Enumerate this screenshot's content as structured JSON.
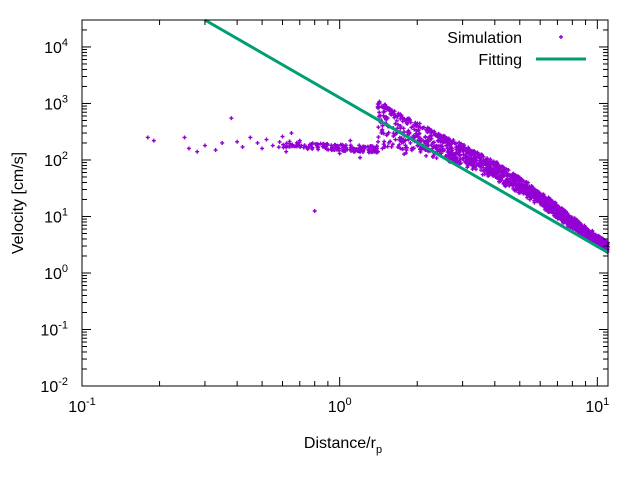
{
  "chart_data": {
    "type": "scatter",
    "title": "",
    "xlabel": "Distance/r",
    "xlabel_sub": "p",
    "ylabel": "Velocity [cm/s]",
    "x_scale": "log",
    "y_scale": "log",
    "xlim": [
      0.1,
      11
    ],
    "ylim": [
      0.01,
      30000
    ],
    "x_ticks": [
      {
        "value": 0.1,
        "base": "10",
        "exp": "-1"
      },
      {
        "value": 1,
        "base": "10",
        "exp": "0"
      },
      {
        "value": 10,
        "base": "10",
        "exp": "1"
      }
    ],
    "y_ticks": [
      {
        "value": 0.01,
        "base": "10",
        "exp": "-2"
      },
      {
        "value": 0.1,
        "base": "10",
        "exp": "-1"
      },
      {
        "value": 1,
        "base": "10",
        "exp": "0"
      },
      {
        "value": 10,
        "base": "10",
        "exp": "1"
      },
      {
        "value": 100,
        "base": "10",
        "exp": "2"
      },
      {
        "value": 1000,
        "base": "10",
        "exp": "3"
      },
      {
        "value": 10000,
        "base": "10",
        "exp": "4"
      }
    ],
    "legend_position": "top-right",
    "series": [
      {
        "name": "Simulation",
        "kind": "scatter",
        "color": "#9400d3",
        "trend": [
          [
            0.6,
            190
          ],
          [
            0.8,
            175
          ],
          [
            1.0,
            165
          ],
          [
            1.3,
            155
          ],
          [
            1.6,
            150
          ],
          [
            2.0,
            135
          ],
          [
            2.5,
            110
          ],
          [
            3.0,
            85
          ],
          [
            4.0,
            48
          ],
          [
            5.0,
            28
          ],
          [
            6.0,
            17
          ],
          [
            7.0,
            10
          ],
          [
            8.0,
            6.5
          ],
          [
            9.0,
            4.5
          ],
          [
            10.0,
            3.3
          ],
          [
            11.0,
            2.6
          ]
        ],
        "upper_branch": [
          [
            1.4,
            1100
          ],
          [
            1.6,
            700
          ],
          [
            2.0,
            420
          ],
          [
            2.5,
            260
          ],
          [
            3.0,
            175
          ],
          [
            4.0,
            85
          ],
          [
            5.0,
            45
          ],
          [
            6.0,
            25
          ],
          [
            7.0,
            15
          ],
          [
            8.0,
            9
          ],
          [
            9.0,
            6
          ],
          [
            10.0,
            4.3
          ],
          [
            11.0,
            3.2
          ]
        ],
        "scattered_points": [
          [
            0.18,
            250
          ],
          [
            0.19,
            220
          ],
          [
            0.25,
            250
          ],
          [
            0.26,
            160
          ],
          [
            0.28,
            140
          ],
          [
            0.3,
            180
          ],
          [
            0.33,
            150
          ],
          [
            0.35,
            200
          ],
          [
            0.38,
            550
          ],
          [
            0.4,
            210
          ],
          [
            0.42,
            170
          ],
          [
            0.45,
            250
          ],
          [
            0.48,
            200
          ],
          [
            0.5,
            160
          ],
          [
            0.52,
            230
          ],
          [
            0.55,
            180
          ],
          [
            0.6,
            260
          ],
          [
            0.62,
            140
          ],
          [
            0.65,
            300
          ],
          [
            0.7,
            220
          ],
          [
            0.75,
            160
          ],
          [
            0.8,
            12.5
          ],
          [
            1.0,
            130
          ],
          [
            1.1,
            220
          ],
          [
            1.2,
            110
          ]
        ],
        "x_range": [
          0.55,
          11.0
        ]
      },
      {
        "name": "Fitting",
        "kind": "line",
        "color": "#009e73",
        "points": [
          [
            0.3,
            30000
          ],
          [
            11,
            2.3
          ]
        ]
      }
    ]
  }
}
